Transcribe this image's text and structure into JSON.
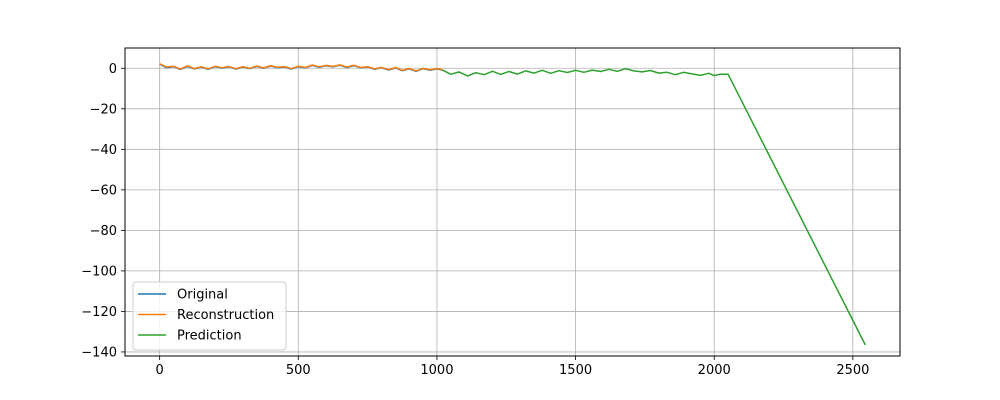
{
  "chart_data": {
    "type": "line",
    "title": "",
    "xlabel": "",
    "ylabel": "",
    "xlim": [
      -125,
      2670
    ],
    "ylim": [
      -142,
      10
    ],
    "xticks": [
      0,
      500,
      1000,
      1500,
      2000,
      2500
    ],
    "yticks": [
      0,
      -20,
      -40,
      -60,
      -80,
      -100,
      -120,
      -140
    ],
    "grid": true,
    "legend_position": "lower-left",
    "series": [
      {
        "name": "Original",
        "color": "#1f77b4",
        "x": [
          0,
          25,
          50,
          75,
          100,
          125,
          150,
          175,
          200,
          225,
          250,
          275,
          300,
          325,
          350,
          375,
          400,
          425,
          450,
          475,
          500,
          525,
          550,
          575,
          600,
          625,
          650,
          675,
          700,
          725,
          750,
          775,
          800,
          825,
          850,
          875,
          900,
          925,
          950,
          975,
          1000,
          1020
        ],
        "y": [
          2.0,
          0.3,
          0.8,
          -0.6,
          0.9,
          -0.3,
          0.5,
          -0.5,
          0.8,
          0.1,
          0.7,
          -0.4,
          0.6,
          -0.2,
          0.9,
          0.0,
          1.1,
          0.3,
          0.6,
          -0.4,
          0.8,
          0.2,
          1.4,
          0.5,
          1.2,
          0.7,
          1.5,
          0.4,
          1.3,
          0.2,
          0.6,
          -0.5,
          0.3,
          -0.9,
          0.2,
          -1.2,
          -0.3,
          -1.5,
          -0.2,
          -1.0,
          -0.3,
          -0.9
        ]
      },
      {
        "name": "Reconstruction",
        "color": "#ff7f0e",
        "x": [
          0,
          25,
          50,
          75,
          100,
          125,
          150,
          175,
          200,
          225,
          250,
          275,
          300,
          325,
          350,
          375,
          400,
          425,
          450,
          475,
          500,
          525,
          550,
          575,
          600,
          625,
          650,
          675,
          700,
          725,
          750,
          775,
          800,
          825,
          850,
          875,
          900,
          925,
          950,
          975,
          1000,
          1020
        ],
        "y": [
          2.2,
          0.6,
          1.0,
          -0.4,
          1.2,
          -0.1,
          0.7,
          -0.3,
          1.0,
          0.3,
          0.9,
          -0.2,
          0.8,
          0.0,
          1.1,
          0.2,
          1.3,
          0.5,
          0.8,
          -0.2,
          1.0,
          0.4,
          1.6,
          0.7,
          1.4,
          0.9,
          1.7,
          0.6,
          1.5,
          0.4,
          0.8,
          -0.3,
          0.5,
          -0.7,
          0.4,
          -1.0,
          -0.1,
          -1.3,
          0.0,
          -0.8,
          -0.1,
          -0.7
        ]
      },
      {
        "name": "Prediction",
        "color": "#2ca02c",
        "x": [
          1020,
          1050,
          1080,
          1110,
          1140,
          1170,
          1200,
          1230,
          1260,
          1290,
          1320,
          1350,
          1380,
          1410,
          1440,
          1470,
          1500,
          1530,
          1560,
          1590,
          1620,
          1650,
          1680,
          1710,
          1740,
          1770,
          1800,
          1830,
          1860,
          1890,
          1920,
          1950,
          1980,
          2000,
          2020,
          2050,
          2545
        ],
        "y": [
          -0.9,
          -3.0,
          -1.8,
          -3.8,
          -2.2,
          -3.2,
          -1.5,
          -3.0,
          -1.6,
          -2.9,
          -1.3,
          -2.4,
          -1.0,
          -2.5,
          -1.2,
          -2.1,
          -1.0,
          -2.0,
          -0.9,
          -1.6,
          -0.5,
          -1.5,
          -0.2,
          -1.3,
          -1.8,
          -1.1,
          -2.4,
          -2.0,
          -3.2,
          -2.0,
          -2.8,
          -3.5,
          -2.5,
          -3.6,
          -3.0,
          -3.0,
          -136.5
        ]
      }
    ]
  }
}
